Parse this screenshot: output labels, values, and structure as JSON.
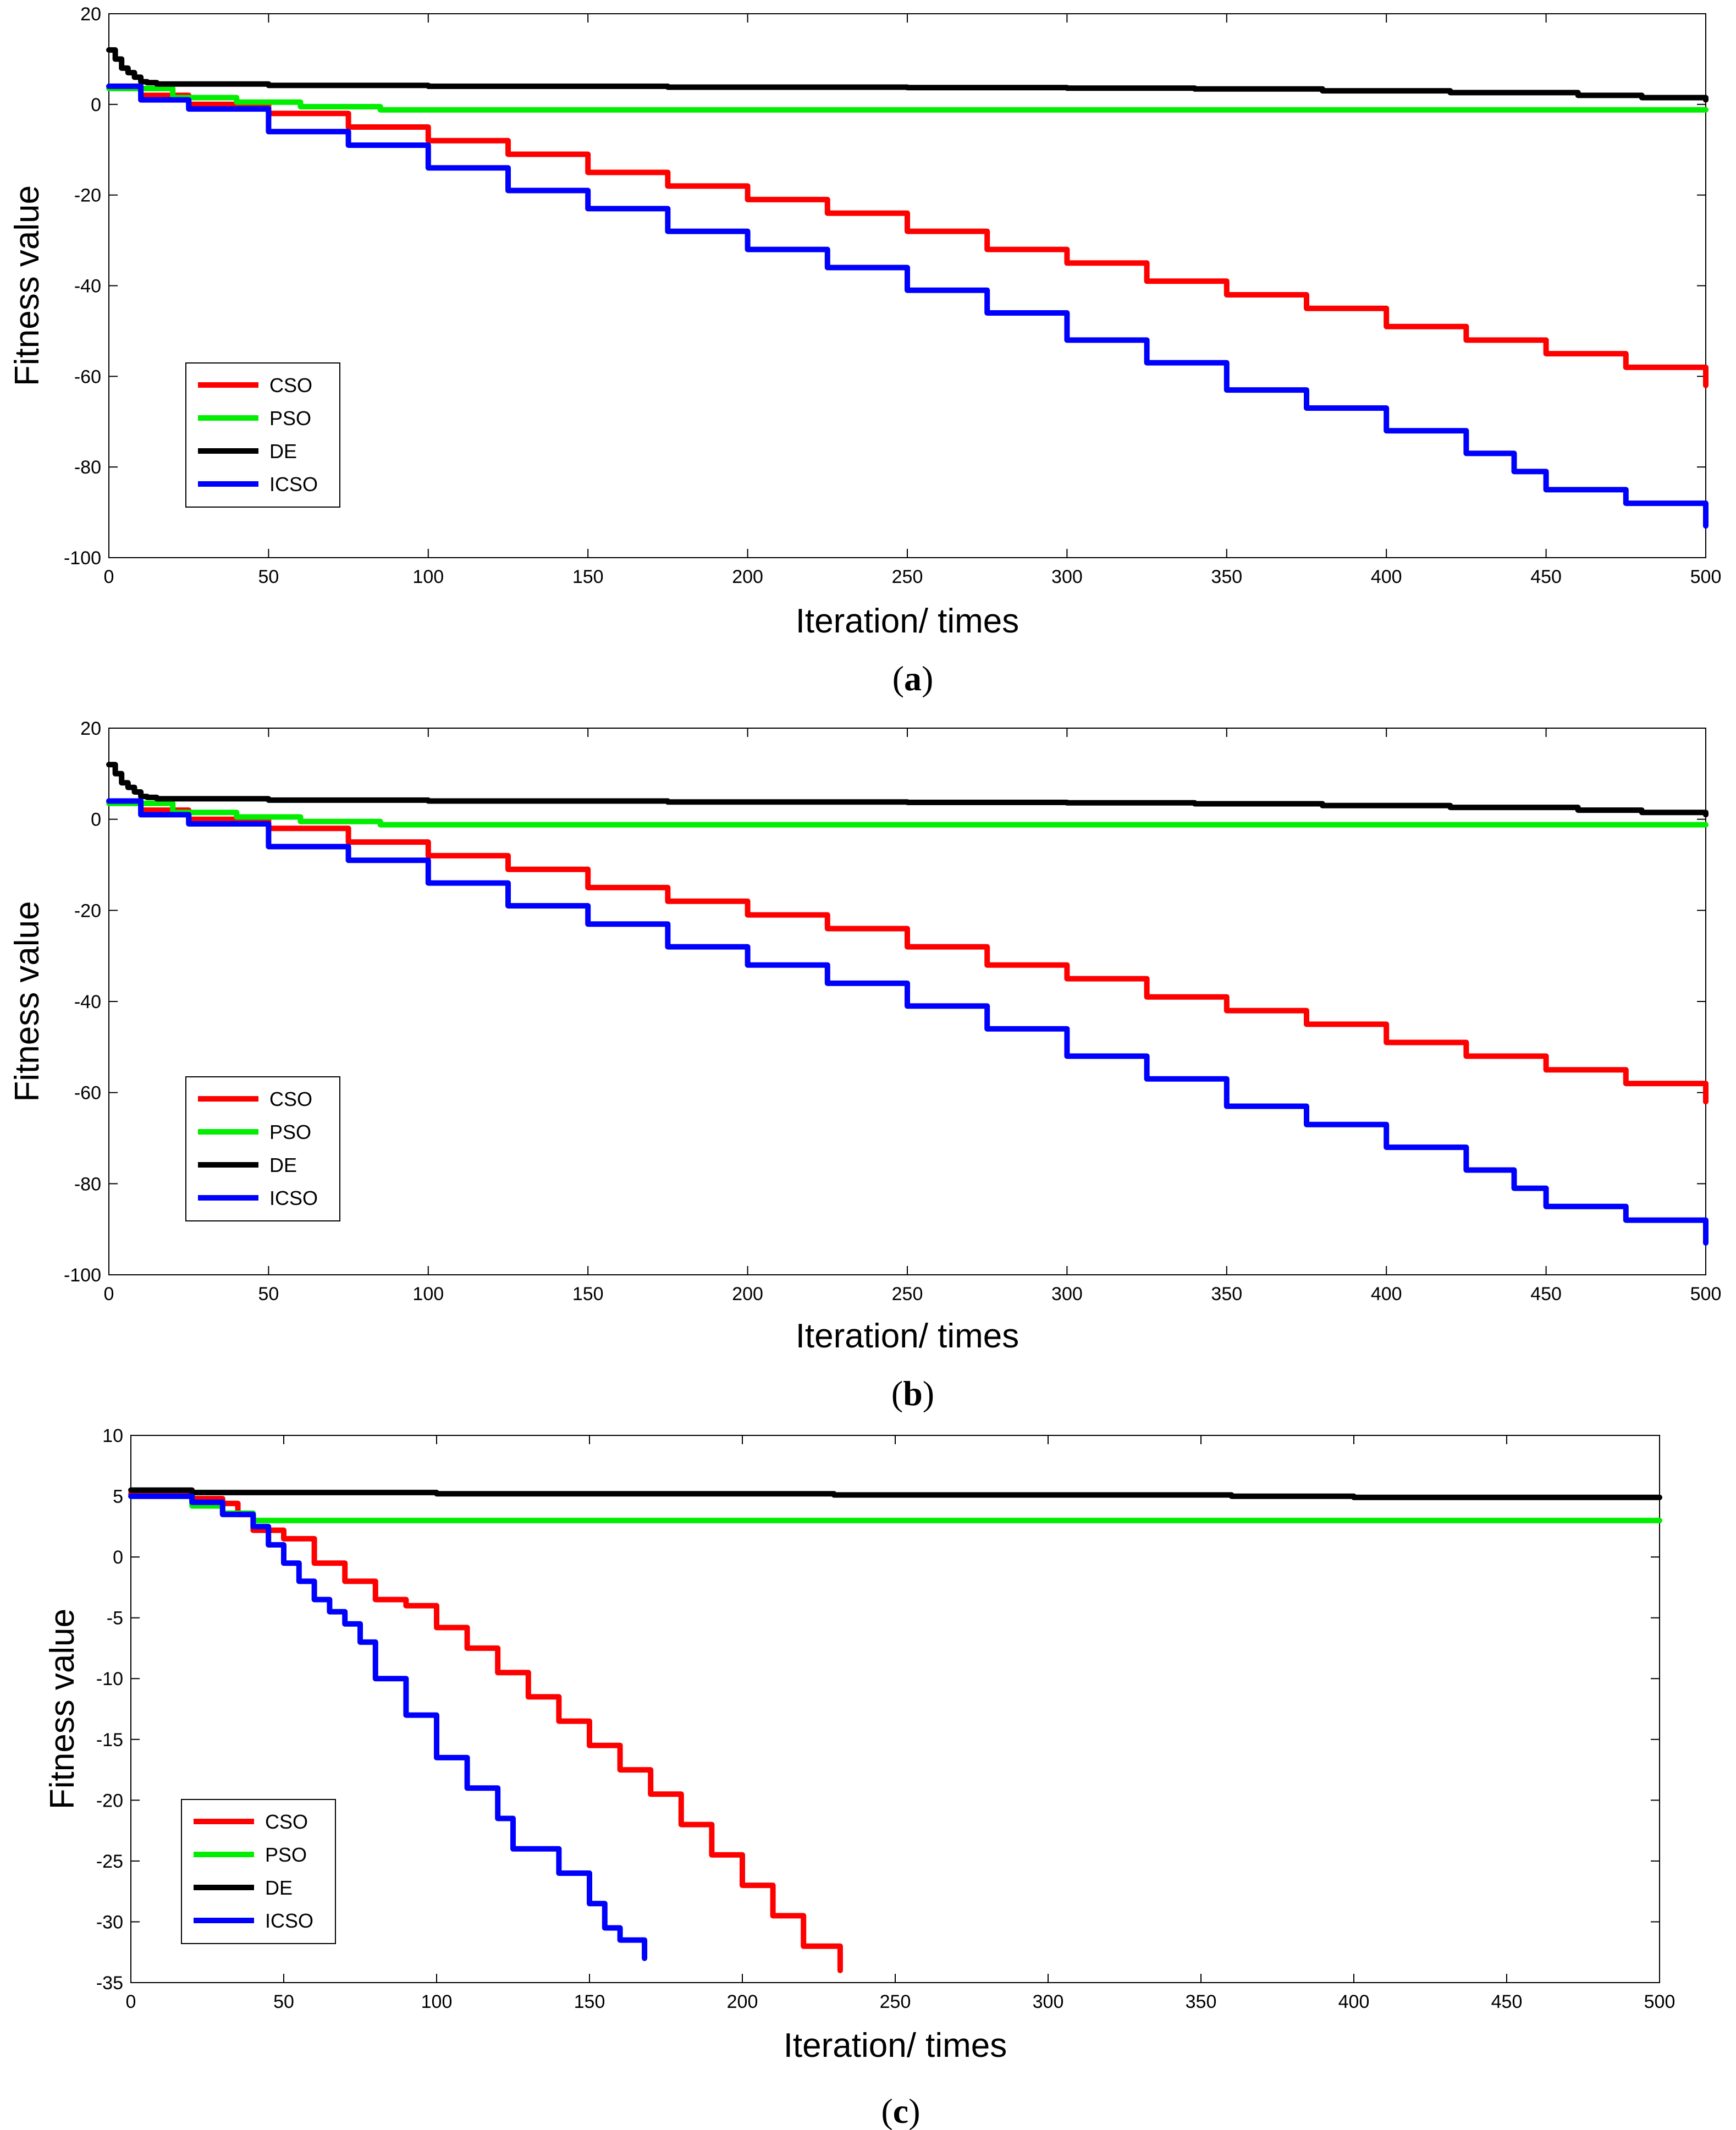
{
  "chart_data": [
    {
      "type": "line",
      "caption_letter": "a",
      "xlabel": "Iteration/ times",
      "ylabel": "Fitness value",
      "xlim": [
        0,
        500
      ],
      "ylim": [
        -100,
        20
      ],
      "xticks": [
        0,
        50,
        100,
        150,
        200,
        250,
        300,
        350,
        400,
        450,
        500
      ],
      "yticks": [
        20,
        0,
        -20,
        -40,
        -60,
        -80,
        -100
      ],
      "legend_position": "lower-left",
      "series": [
        {
          "name": "CSO",
          "color": "#ff0000",
          "x": [
            0,
            10,
            25,
            50,
            75,
            100,
            125,
            150,
            175,
            200,
            225,
            250,
            275,
            300,
            325,
            350,
            375,
            400,
            425,
            450,
            475,
            500
          ],
          "y": [
            4,
            2,
            0,
            -2,
            -5,
            -8,
            -11,
            -15,
            -18,
            -21,
            -24,
            -28,
            -32,
            -35,
            -39,
            -42,
            -45,
            -49,
            -52,
            -55,
            -58,
            -62
          ]
        },
        {
          "name": "PSO",
          "color": "#00ee00",
          "x": [
            0,
            20,
            40,
            60,
            85,
            100,
            200,
            300,
            400,
            500
          ],
          "y": [
            3.5,
            1.5,
            0.5,
            -0.5,
            -1.2,
            -1.2,
            -1.2,
            -1.2,
            -1.2,
            -1.2
          ]
        },
        {
          "name": "DE",
          "color": "#000000",
          "x": [
            0,
            2,
            4,
            6,
            8,
            10,
            12,
            15,
            50,
            100,
            175,
            250,
            300,
            340,
            380,
            420,
            460,
            480,
            500
          ],
          "y": [
            12,
            10,
            8,
            7,
            6,
            5,
            4.8,
            4.5,
            4.2,
            4,
            3.8,
            3.7,
            3.6,
            3.4,
            3,
            2.6,
            2,
            1.5,
            1
          ]
        },
        {
          "name": "ICSO",
          "color": "#0000ff",
          "x": [
            0,
            10,
            25,
            50,
            75,
            100,
            125,
            150,
            175,
            200,
            225,
            250,
            275,
            300,
            325,
            350,
            375,
            400,
            425,
            440,
            450,
            475,
            500
          ],
          "y": [
            4,
            1,
            -1,
            -6,
            -9,
            -14,
            -19,
            -23,
            -28,
            -32,
            -36,
            -41,
            -46,
            -52,
            -57,
            -63,
            -67,
            -72,
            -77,
            -81,
            -85,
            -88,
            -93
          ]
        }
      ]
    },
    {
      "type": "line",
      "caption_letter": "b",
      "xlabel": "Iteration/ times",
      "ylabel": "Fitness value",
      "xlim": [
        0,
        500
      ],
      "ylim": [
        -100,
        20
      ],
      "xticks": [
        0,
        50,
        100,
        150,
        200,
        250,
        300,
        350,
        400,
        450,
        500
      ],
      "yticks": [
        20,
        0,
        -20,
        -40,
        -60,
        -80,
        -100
      ],
      "legend_position": "lower-left",
      "series": [
        {
          "name": "CSO",
          "color": "#ff0000",
          "x": [
            0,
            10,
            25,
            50,
            75,
            100,
            125,
            150,
            175,
            200,
            225,
            250,
            275,
            300,
            325,
            350,
            375,
            400,
            425,
            450,
            475,
            500
          ],
          "y": [
            4,
            2,
            0,
            -2,
            -5,
            -8,
            -11,
            -15,
            -18,
            -21,
            -24,
            -28,
            -32,
            -35,
            -39,
            -42,
            -45,
            -49,
            -52,
            -55,
            -58,
            -62
          ]
        },
        {
          "name": "PSO",
          "color": "#00ee00",
          "x": [
            0,
            20,
            40,
            60,
            85,
            100,
            200,
            300,
            400,
            500
          ],
          "y": [
            3.5,
            1.5,
            0.5,
            -0.5,
            -1.2,
            -1.2,
            -1.2,
            -1.2,
            -1.2,
            -1.2
          ]
        },
        {
          "name": "DE",
          "color": "#000000",
          "x": [
            0,
            2,
            4,
            6,
            8,
            10,
            12,
            15,
            50,
            100,
            175,
            250,
            300,
            340,
            380,
            420,
            460,
            480,
            500
          ],
          "y": [
            12,
            10,
            8,
            7,
            6,
            5,
            4.8,
            4.5,
            4.2,
            4,
            3.8,
            3.7,
            3.6,
            3.4,
            3,
            2.6,
            2,
            1.5,
            1
          ]
        },
        {
          "name": "ICSO",
          "color": "#0000ff",
          "x": [
            0,
            10,
            25,
            50,
            75,
            100,
            125,
            150,
            175,
            200,
            225,
            250,
            275,
            300,
            325,
            350,
            375,
            400,
            425,
            440,
            450,
            475,
            500
          ],
          "y": [
            4,
            1,
            -1,
            -6,
            -9,
            -14,
            -19,
            -23,
            -28,
            -32,
            -36,
            -41,
            -46,
            -52,
            -57,
            -63,
            -67,
            -72,
            -77,
            -81,
            -85,
            -88,
            -93
          ]
        }
      ]
    },
    {
      "type": "line",
      "caption_letter": "c",
      "xlabel": "Iteration/ times",
      "ylabel": "Fitness value",
      "xlim": [
        0,
        500
      ],
      "ylim": [
        -35,
        10
      ],
      "xticks": [
        0,
        50,
        100,
        150,
        200,
        250,
        300,
        350,
        400,
        450,
        500
      ],
      "yticks": [
        10,
        5,
        0,
        -5,
        -10,
        -15,
        -20,
        -25,
        -30,
        -35
      ],
      "legend_position": "lower-left",
      "series": [
        {
          "name": "CSO",
          "color": "#ff0000",
          "x": [
            0,
            20,
            30,
            35,
            40,
            50,
            60,
            70,
            80,
            90,
            100,
            110,
            120,
            130,
            140,
            150,
            160,
            170,
            180,
            190,
            200,
            210,
            220,
            232
          ],
          "y": [
            5.2,
            4.8,
            4.4,
            3.5,
            2.2,
            1.5,
            -0.5,
            -2,
            -3.5,
            -4,
            -5.8,
            -7.5,
            -9.5,
            -11.5,
            -13.5,
            -15.5,
            -17.5,
            -19.5,
            -22,
            -24.5,
            -27,
            -29.5,
            -32,
            -34
          ]
        },
        {
          "name": "PSO",
          "color": "#00ee00",
          "x": [
            0,
            20,
            30,
            40,
            50,
            100,
            200,
            300,
            400,
            500
          ],
          "y": [
            5,
            4.2,
            3.6,
            3,
            3,
            3,
            3,
            3,
            3,
            3
          ]
        },
        {
          "name": "DE",
          "color": "#000000",
          "x": [
            0,
            15,
            20,
            100,
            200,
            230,
            300,
            360,
            400,
            500
          ],
          "y": [
            5.5,
            5.5,
            5.3,
            5.2,
            5.2,
            5.1,
            5.1,
            5,
            4.9,
            4.9
          ]
        },
        {
          "name": "ICSO",
          "color": "#0000ff",
          "x": [
            0,
            20,
            30,
            40,
            45,
            50,
            55,
            60,
            65,
            70,
            75,
            80,
            90,
            100,
            110,
            120,
            125,
            130,
            140,
            150,
            155,
            160,
            168
          ],
          "y": [
            5,
            4.5,
            3.5,
            2.5,
            1,
            -0.5,
            -2,
            -3.5,
            -4.5,
            -5.5,
            -7,
            -10,
            -13,
            -16.5,
            -19,
            -21.5,
            -24,
            -24,
            -26,
            -28.5,
            -30.5,
            -31.5,
            -33
          ]
        }
      ]
    }
  ]
}
